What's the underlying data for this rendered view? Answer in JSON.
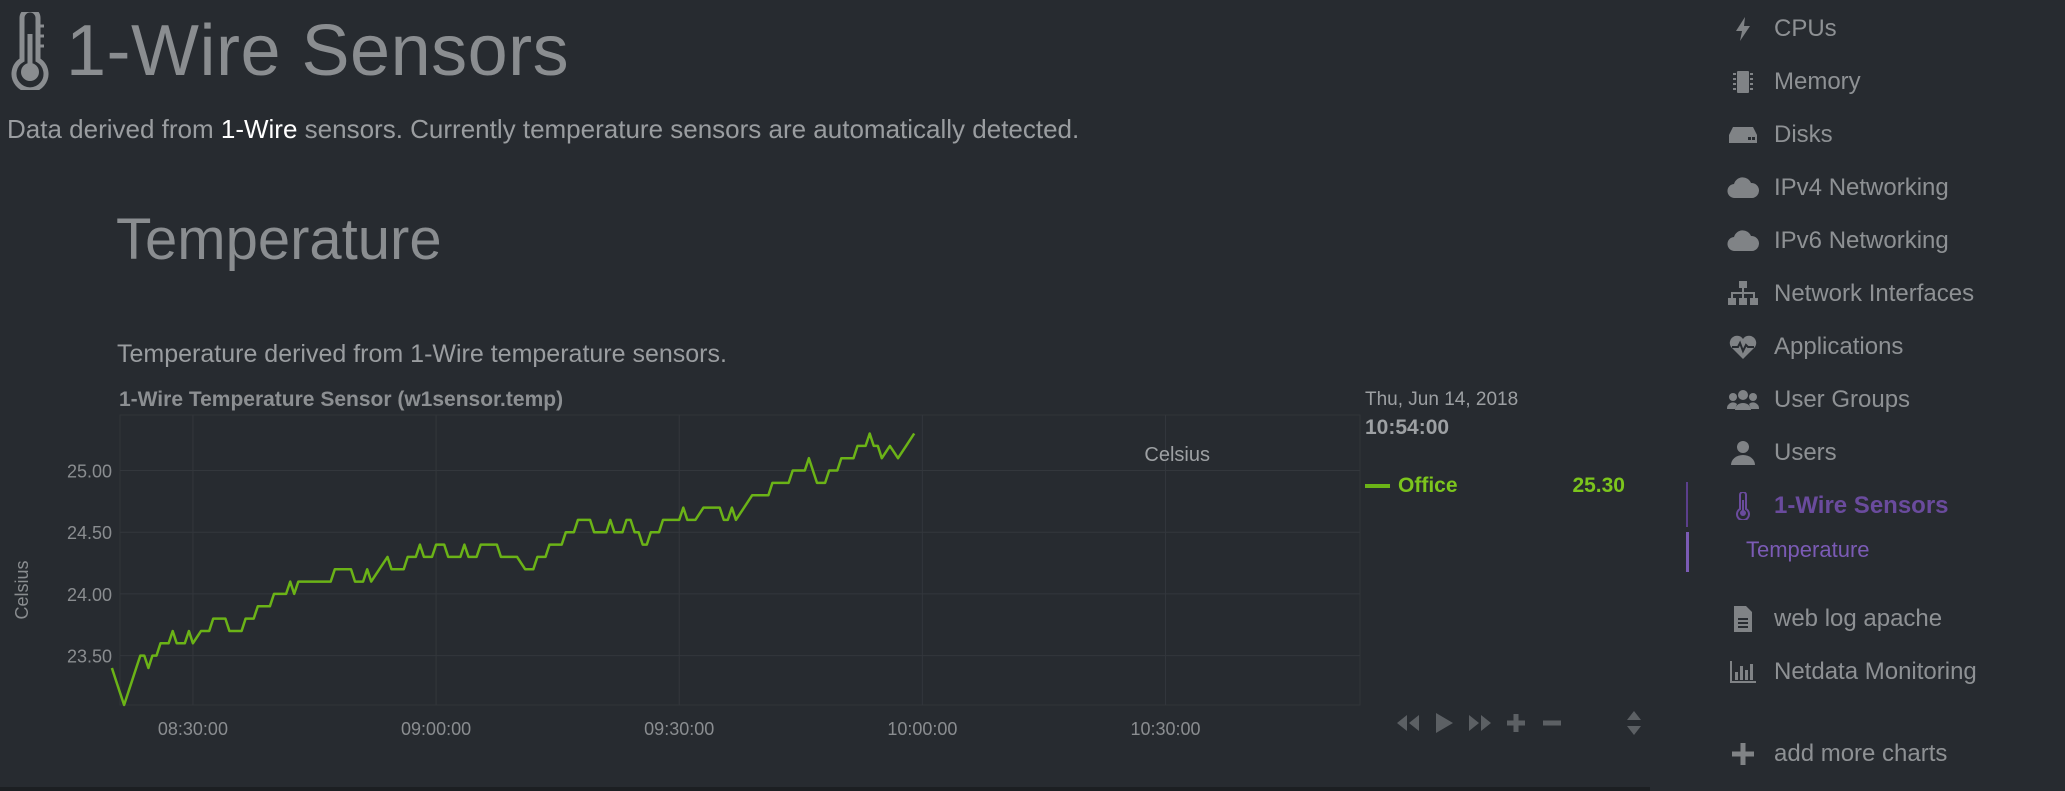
{
  "section": {
    "title": "1-Wire Sensors",
    "icon": "thermometer-icon",
    "description_prefix": "Data derived from ",
    "description_highlight": "1-Wire",
    "description_suffix": " sensors. Currently temperature sensors are automatically detected."
  },
  "subsection": {
    "title": "Temperature",
    "description": "Temperature derived from 1-Wire temperature sensors."
  },
  "chart": {
    "title": "1-Wire Temperature Sensor (w1sensor.temp)",
    "ylabel": "Celsius"
  },
  "legend": {
    "date": "Thu, Jun 14, 2018",
    "time": "10:54:00",
    "units": "Celsius",
    "dimension": "Office",
    "value": "25.30",
    "color": "#6bb317"
  },
  "chart_data": {
    "type": "line",
    "title": "1-Wire Temperature Sensor (w1sensor.temp)",
    "xlabel": "",
    "ylabel": "Celsius",
    "x_range": [
      "08:21:00",
      "10:54:00"
    ],
    "ylim": [
      23.1,
      25.45
    ],
    "x_ticks": [
      "08:30:00",
      "09:00:00",
      "09:30:00",
      "10:00:00",
      "10:30:00"
    ],
    "y_ticks": [
      "23.50",
      "24.00",
      "24.50",
      "25.00"
    ],
    "grid": true,
    "series": [
      {
        "name": "Office",
        "color": "#6bb317",
        "points": [
          [
            "08:20:00",
            23.4
          ],
          [
            "08:20:30",
            23.3
          ],
          [
            "08:21:00",
            23.2
          ],
          [
            "08:21:30",
            23.1
          ],
          [
            "08:22:00",
            23.2
          ],
          [
            "08:22:30",
            23.3
          ],
          [
            "08:23:00",
            23.4
          ],
          [
            "08:23:30",
            23.5
          ],
          [
            "08:24:00",
            23.5
          ],
          [
            "08:24:30",
            23.4
          ],
          [
            "08:25:00",
            23.5
          ],
          [
            "08:25:30",
            23.5
          ],
          [
            "08:26:00",
            23.6
          ],
          [
            "08:27:00",
            23.6
          ],
          [
            "08:27:30",
            23.7
          ],
          [
            "08:28:00",
            23.6
          ],
          [
            "08:29:00",
            23.6
          ],
          [
            "08:29:30",
            23.7
          ],
          [
            "08:30:00",
            23.6
          ],
          [
            "08:31:00",
            23.7
          ],
          [
            "08:32:00",
            23.7
          ],
          [
            "08:32:30",
            23.8
          ],
          [
            "08:34:00",
            23.8
          ],
          [
            "08:34:30",
            23.7
          ],
          [
            "08:36:00",
            23.7
          ],
          [
            "08:36:30",
            23.8
          ],
          [
            "08:37:30",
            23.8
          ],
          [
            "08:38:00",
            23.9
          ],
          [
            "08:39:30",
            23.9
          ],
          [
            "08:40:00",
            24.0
          ],
          [
            "08:41:30",
            24.0
          ],
          [
            "08:42:00",
            24.1
          ],
          [
            "08:42:30",
            24.0
          ],
          [
            "08:43:00",
            24.1
          ],
          [
            "08:44:00",
            24.1
          ],
          [
            "08:45:00",
            24.1
          ],
          [
            "08:47:00",
            24.1
          ],
          [
            "08:47:30",
            24.2
          ],
          [
            "08:49:30",
            24.2
          ],
          [
            "08:50:00",
            24.1
          ],
          [
            "08:51:00",
            24.1
          ],
          [
            "08:51:30",
            24.2
          ],
          [
            "08:52:00",
            24.1
          ],
          [
            "08:53:00",
            24.2
          ],
          [
            "08:54:00",
            24.3
          ],
          [
            "08:54:30",
            24.2
          ],
          [
            "08:56:00",
            24.2
          ],
          [
            "08:56:30",
            24.3
          ],
          [
            "08:57:30",
            24.3
          ],
          [
            "08:58:00",
            24.4
          ],
          [
            "08:58:30",
            24.3
          ],
          [
            "08:59:30",
            24.3
          ],
          [
            "09:00:00",
            24.4
          ],
          [
            "09:01:00",
            24.4
          ],
          [
            "09:01:30",
            24.3
          ],
          [
            "09:03:00",
            24.3
          ],
          [
            "09:03:30",
            24.4
          ],
          [
            "09:04:00",
            24.3
          ],
          [
            "09:05:00",
            24.3
          ],
          [
            "09:05:30",
            24.4
          ],
          [
            "09:07:30",
            24.4
          ],
          [
            "09:08:00",
            24.3
          ],
          [
            "09:09:00",
            24.3
          ],
          [
            "09:10:00",
            24.3
          ],
          [
            "09:11:00",
            24.2
          ],
          [
            "09:12:00",
            24.2
          ],
          [
            "09:12:30",
            24.3
          ],
          [
            "09:13:30",
            24.3
          ],
          [
            "09:14:00",
            24.4
          ],
          [
            "09:15:30",
            24.4
          ],
          [
            "09:16:00",
            24.5
          ],
          [
            "09:17:00",
            24.5
          ],
          [
            "09:17:30",
            24.6
          ],
          [
            "09:19:00",
            24.6
          ],
          [
            "09:19:30",
            24.5
          ],
          [
            "09:21:00",
            24.5
          ],
          [
            "09:21:30",
            24.6
          ],
          [
            "09:22:00",
            24.5
          ],
          [
            "09:23:00",
            24.5
          ],
          [
            "09:23:30",
            24.6
          ],
          [
            "09:24:00",
            24.6
          ],
          [
            "09:24:30",
            24.5
          ],
          [
            "09:25:00",
            24.5
          ],
          [
            "09:25:30",
            24.4
          ],
          [
            "09:26:00",
            24.4
          ],
          [
            "09:26:30",
            24.5
          ],
          [
            "09:27:30",
            24.5
          ],
          [
            "09:28:00",
            24.6
          ],
          [
            "09:30:00",
            24.6
          ],
          [
            "09:30:30",
            24.7
          ],
          [
            "09:31:00",
            24.6
          ],
          [
            "09:32:00",
            24.6
          ],
          [
            "09:33:00",
            24.7
          ],
          [
            "09:35:00",
            24.7
          ],
          [
            "09:35:30",
            24.6
          ],
          [
            "09:36:00",
            24.6
          ],
          [
            "09:36:30",
            24.7
          ],
          [
            "09:37:00",
            24.6
          ],
          [
            "09:38:00",
            24.7
          ],
          [
            "09:39:00",
            24.8
          ],
          [
            "09:41:00",
            24.8
          ],
          [
            "09:41:30",
            24.9
          ],
          [
            "09:43:30",
            24.9
          ],
          [
            "09:44:00",
            25.0
          ],
          [
            "09:45:30",
            25.0
          ],
          [
            "09:46:00",
            25.1
          ],
          [
            "09:46:30",
            25.0
          ],
          [
            "09:47:00",
            24.9
          ],
          [
            "09:48:00",
            24.9
          ],
          [
            "09:48:30",
            25.0
          ],
          [
            "09:49:30",
            25.0
          ],
          [
            "09:50:00",
            25.1
          ],
          [
            "09:51:30",
            25.1
          ],
          [
            "09:52:00",
            25.2
          ],
          [
            "09:53:00",
            25.2
          ],
          [
            "09:53:30",
            25.3
          ],
          [
            "09:54:00",
            25.2
          ],
          [
            "09:54:30",
            25.2
          ],
          [
            "09:55:00",
            25.1
          ],
          [
            "09:56:00",
            25.2
          ],
          [
            "09:57:00",
            25.1
          ],
          [
            "09:58:00",
            25.2
          ],
          [
            "09:59:00",
            25.3
          ]
        ]
      }
    ]
  },
  "toolbar": {
    "buttons": [
      "rewind-icon",
      "play-icon",
      "fast-forward-icon",
      "zoom-in-icon",
      "zoom-out-icon",
      "resize-icon"
    ]
  },
  "sidebar": {
    "items": [
      {
        "label": "CPUs",
        "icon": "bolt-icon"
      },
      {
        "label": "Memory",
        "icon": "memory-chip-icon"
      },
      {
        "label": "Disks",
        "icon": "hard-drive-icon"
      },
      {
        "label": "IPv4 Networking",
        "icon": "cloud-icon"
      },
      {
        "label": "IPv6 Networking",
        "icon": "cloud-icon"
      },
      {
        "label": "Network Interfaces",
        "icon": "sitemap-icon"
      },
      {
        "label": "Applications",
        "icon": "heartbeat-icon"
      },
      {
        "label": "User Groups",
        "icon": "users-icon"
      },
      {
        "label": "Users",
        "icon": "user-icon"
      },
      {
        "label": "1-Wire Sensors",
        "icon": "thermometer-icon"
      },
      {
        "label": "web log apache",
        "icon": "file-icon"
      },
      {
        "label": "Netdata Monitoring",
        "icon": "bar-chart-icon"
      },
      {
        "label": "add more charts",
        "icon": "plus-icon"
      }
    ],
    "active_sub": "Temperature",
    "active_color": "#6a4b9d"
  }
}
